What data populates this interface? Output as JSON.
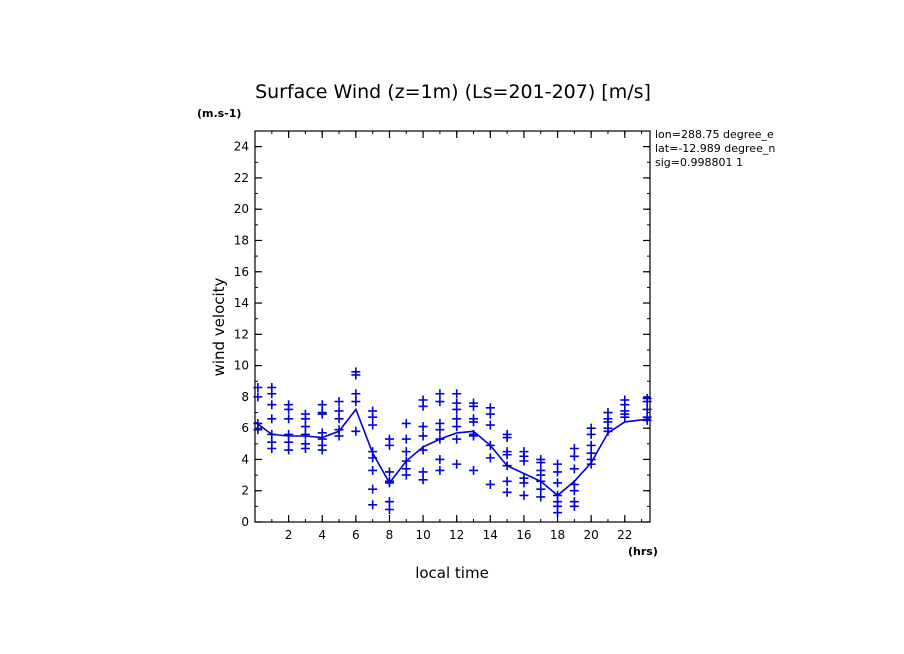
{
  "chart_data": {
    "type": "scatter",
    "title": "Surface Wind (z=1m) (Ls=201-207) [m/s]",
    "xlabel": "local time",
    "ylabel": "wind velocity",
    "x_unit": "(hrs)",
    "y_unit": "(m.s-1)",
    "xlim": [
      0,
      23.5
    ],
    "ylim": [
      0,
      25
    ],
    "xticks": [
      2,
      4,
      6,
      8,
      10,
      12,
      14,
      16,
      18,
      20,
      22
    ],
    "yticks": [
      0,
      2,
      4,
      6,
      8,
      10,
      12,
      14,
      16,
      18,
      20,
      22,
      24
    ],
    "info": [
      "lon=288.75 degree_e",
      "lat=-12.989 degree_n",
      "sig=0.998801 1"
    ],
    "color": "#0000dd",
    "series": [
      {
        "type": "scatter",
        "points": [
          [
            0.17,
            8.6
          ],
          [
            0.17,
            8.0
          ],
          [
            0.17,
            6.3
          ],
          [
            0.17,
            5.9
          ],
          [
            1.0,
            8.6
          ],
          [
            1.0,
            8.2
          ],
          [
            1.0,
            7.5
          ],
          [
            1.0,
            6.6
          ],
          [
            1.0,
            5.6
          ],
          [
            1.0,
            5.1
          ],
          [
            1.0,
            4.7
          ],
          [
            2.0,
            7.5
          ],
          [
            2.0,
            7.2
          ],
          [
            2.0,
            6.6
          ],
          [
            2.0,
            5.6
          ],
          [
            2.0,
            5.1
          ],
          [
            2.0,
            4.6
          ],
          [
            3.0,
            6.9
          ],
          [
            3.0,
            6.6
          ],
          [
            3.0,
            6.1
          ],
          [
            3.0,
            5.6
          ],
          [
            3.0,
            5.0
          ],
          [
            3.0,
            4.7
          ],
          [
            4.0,
            7.5
          ],
          [
            4.0,
            7.0
          ],
          [
            4.0,
            6.9
          ],
          [
            4.0,
            5.7
          ],
          [
            4.0,
            5.3
          ],
          [
            4.0,
            4.9
          ],
          [
            4.0,
            4.6
          ],
          [
            5.0,
            7.7
          ],
          [
            5.0,
            7.1
          ],
          [
            5.0,
            6.6
          ],
          [
            5.0,
            5.9
          ],
          [
            5.0,
            5.5
          ],
          [
            6.0,
            9.6
          ],
          [
            6.0,
            9.4
          ],
          [
            6.0,
            8.2
          ],
          [
            6.0,
            7.7
          ],
          [
            6.0,
            5.8
          ],
          [
            7.0,
            7.1
          ],
          [
            7.0,
            6.7
          ],
          [
            7.0,
            6.2
          ],
          [
            7.0,
            4.5
          ],
          [
            7.0,
            4.1
          ],
          [
            7.0,
            3.3
          ],
          [
            7.0,
            2.1
          ],
          [
            7.0,
            1.1
          ],
          [
            8.0,
            5.3
          ],
          [
            8.0,
            4.9
          ],
          [
            8.0,
            3.2
          ],
          [
            8.0,
            2.6
          ],
          [
            8.0,
            2.5
          ],
          [
            8.0,
            1.3
          ],
          [
            8.0,
            0.8
          ],
          [
            9.0,
            6.3
          ],
          [
            9.0,
            5.3
          ],
          [
            9.0,
            4.5
          ],
          [
            9.0,
            3.9
          ],
          [
            9.0,
            3.4
          ],
          [
            9.0,
            3.0
          ],
          [
            10.0,
            7.8
          ],
          [
            10.0,
            7.4
          ],
          [
            10.0,
            6.1
          ],
          [
            10.0,
            5.5
          ],
          [
            10.0,
            4.6
          ],
          [
            10.0,
            3.2
          ],
          [
            10.0,
            2.7
          ],
          [
            11.0,
            8.2
          ],
          [
            11.0,
            7.7
          ],
          [
            11.0,
            6.3
          ],
          [
            11.0,
            5.9
          ],
          [
            11.0,
            5.3
          ],
          [
            11.0,
            4.0
          ],
          [
            11.0,
            3.3
          ],
          [
            12.0,
            8.2
          ],
          [
            12.0,
            7.6
          ],
          [
            12.0,
            7.2
          ],
          [
            12.0,
            6.6
          ],
          [
            12.0,
            6.1
          ],
          [
            12.0,
            5.3
          ],
          [
            12.0,
            3.7
          ],
          [
            13.0,
            7.6
          ],
          [
            13.0,
            7.4
          ],
          [
            13.0,
            6.6
          ],
          [
            13.0,
            6.4
          ],
          [
            13.0,
            5.6
          ],
          [
            13.0,
            5.5
          ],
          [
            13.0,
            3.3
          ],
          [
            14.0,
            7.3
          ],
          [
            14.0,
            6.9
          ],
          [
            14.0,
            6.2
          ],
          [
            14.0,
            4.9
          ],
          [
            14.0,
            4.1
          ],
          [
            14.0,
            2.4
          ],
          [
            15.0,
            5.6
          ],
          [
            15.0,
            5.4
          ],
          [
            15.0,
            4.5
          ],
          [
            15.0,
            4.3
          ],
          [
            15.0,
            3.6
          ],
          [
            15.0,
            2.6
          ],
          [
            15.0,
            1.9
          ],
          [
            16.0,
            4.5
          ],
          [
            16.0,
            4.2
          ],
          [
            16.0,
            3.9
          ],
          [
            16.0,
            2.8
          ],
          [
            16.0,
            2.5
          ],
          [
            16.0,
            1.7
          ],
          [
            17.0,
            4.0
          ],
          [
            17.0,
            3.8
          ],
          [
            17.0,
            3.3
          ],
          [
            17.0,
            3.0
          ],
          [
            17.0,
            2.6
          ],
          [
            17.0,
            2.1
          ],
          [
            17.0,
            1.6
          ],
          [
            18.0,
            3.7
          ],
          [
            18.0,
            3.2
          ],
          [
            18.0,
            2.5
          ],
          [
            18.0,
            1.7
          ],
          [
            18.0,
            1.3
          ],
          [
            18.0,
            1.0
          ],
          [
            18.0,
            0.6
          ],
          [
            19.0,
            4.7
          ],
          [
            19.0,
            4.2
          ],
          [
            19.0,
            3.4
          ],
          [
            19.0,
            2.4
          ],
          [
            19.0,
            2.0
          ],
          [
            19.0,
            1.3
          ],
          [
            19.0,
            1.0
          ],
          [
            20.0,
            6.0
          ],
          [
            20.0,
            5.6
          ],
          [
            20.0,
            4.9
          ],
          [
            20.0,
            4.4
          ],
          [
            20.0,
            4.0
          ],
          [
            20.0,
            3.7
          ],
          [
            21.0,
            7.0
          ],
          [
            21.0,
            6.6
          ],
          [
            21.0,
            6.4
          ],
          [
            21.0,
            6.0
          ],
          [
            21.0,
            5.8
          ],
          [
            22.0,
            7.8
          ],
          [
            22.0,
            7.5
          ],
          [
            22.0,
            7.1
          ],
          [
            22.0,
            6.9
          ],
          [
            22.0,
            6.7
          ],
          [
            23.33,
            7.9
          ],
          [
            23.33,
            7.7
          ],
          [
            23.33,
            7.2
          ],
          [
            23.33,
            6.7
          ],
          [
            23.33,
            6.5
          ]
        ]
      },
      {
        "type": "line",
        "points": [
          [
            0,
            6.4
          ],
          [
            1,
            5.6
          ],
          [
            2,
            5.5
          ],
          [
            3,
            5.5
          ],
          [
            4,
            5.4
          ],
          [
            5,
            5.8
          ],
          [
            6,
            7.2
          ],
          [
            7,
            4.4
          ],
          [
            8,
            2.5
          ],
          [
            9,
            3.9
          ],
          [
            10,
            4.8
          ],
          [
            11,
            5.3
          ],
          [
            12,
            5.7
          ],
          [
            13,
            5.8
          ],
          [
            14,
            4.9
          ],
          [
            15,
            3.6
          ],
          [
            16,
            3.1
          ],
          [
            17,
            2.6
          ],
          [
            18,
            1.7
          ],
          [
            19,
            2.6
          ],
          [
            20,
            3.8
          ],
          [
            21,
            5.7
          ],
          [
            22,
            6.4
          ],
          [
            23.5,
            6.6
          ]
        ]
      }
    ]
  }
}
